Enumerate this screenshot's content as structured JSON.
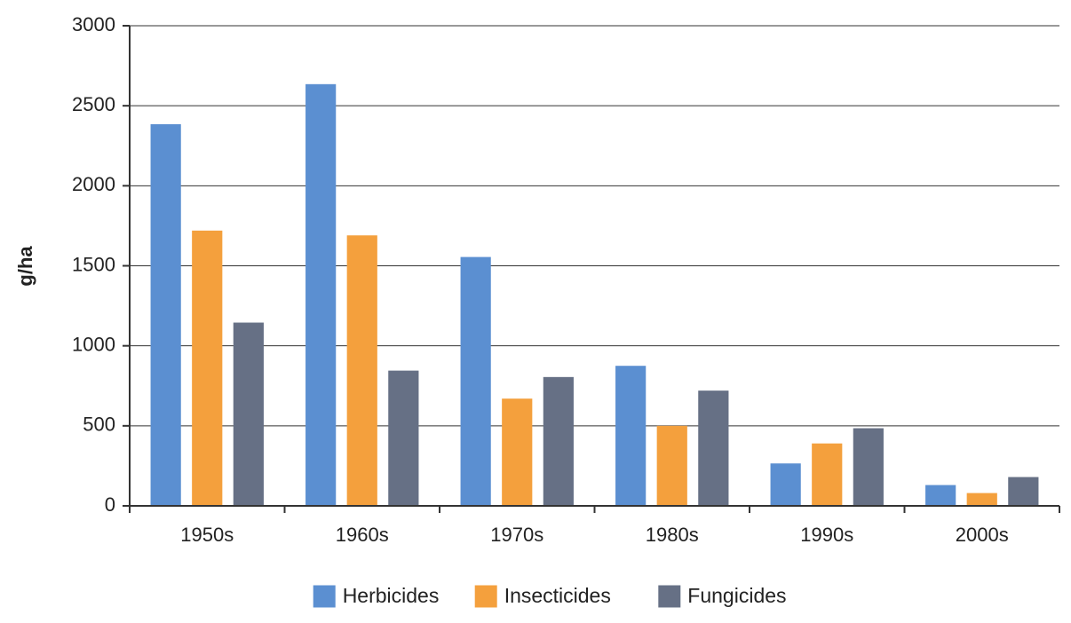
{
  "chart_data": {
    "type": "bar",
    "categories": [
      "1950s",
      "1960s",
      "1970s",
      "1980s",
      "1990s",
      "2000s"
    ],
    "series": [
      {
        "name": "Herbicides",
        "values": [
          2385,
          2635,
          1555,
          875,
          265,
          130
        ],
        "color": "#5b8fd1"
      },
      {
        "name": "Insecticides",
        "values": [
          1720,
          1690,
          670,
          500,
          390,
          80
        ],
        "color": "#f4a03d"
      },
      {
        "name": "Fungicides",
        "values": [
          1145,
          845,
          805,
          720,
          485,
          180
        ],
        "color": "#667085"
      }
    ],
    "title": "",
    "xlabel": "",
    "ylabel": "g/ha",
    "ylim": [
      0,
      3000
    ],
    "yticks": [
      0,
      500,
      1000,
      1500,
      2000,
      2500,
      3000
    ],
    "grid": true,
    "legend_position": "bottom-center"
  }
}
